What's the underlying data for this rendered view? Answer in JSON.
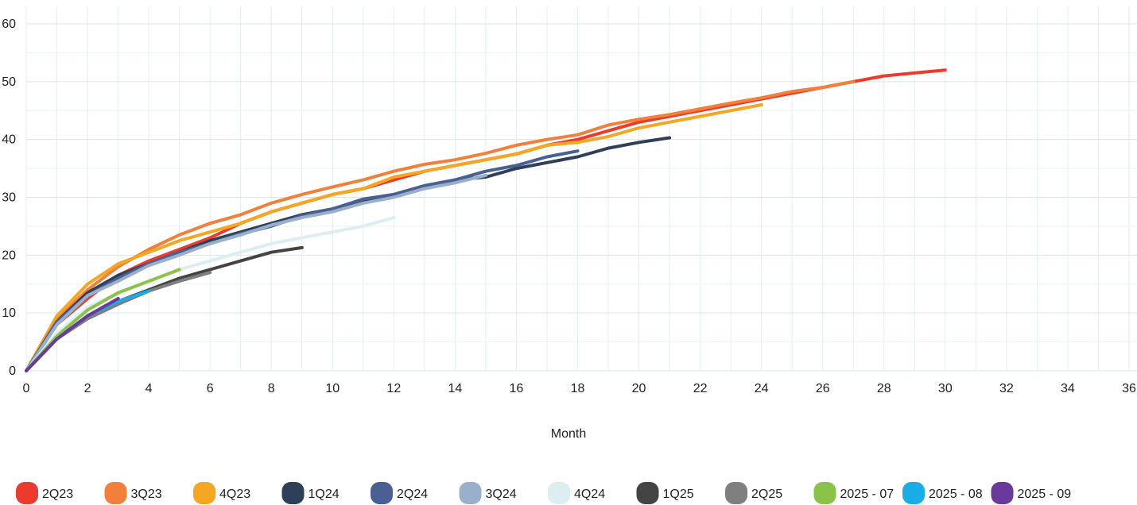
{
  "chart_data": {
    "type": "line",
    "title": "",
    "xlabel": "Month",
    "ylabel": "",
    "xlim": [
      0,
      36
    ],
    "ylim": [
      0,
      60
    ],
    "xticks": [
      0,
      2,
      4,
      6,
      8,
      10,
      12,
      14,
      16,
      18,
      20,
      22,
      24,
      26,
      28,
      30,
      32,
      34,
      36
    ],
    "yticks": [
      0,
      10,
      20,
      30,
      40,
      50,
      60
    ],
    "grid": true,
    "legend_position": "bottom",
    "series": [
      {
        "name": "2Q23",
        "color": "#EC3B2C",
        "x": [
          0,
          1,
          2,
          3,
          4,
          5,
          6,
          7,
          8,
          9,
          10,
          11,
          12,
          13,
          14,
          15,
          16,
          17,
          18,
          19,
          20,
          21,
          22,
          23,
          24,
          25,
          26,
          27,
          28,
          29,
          30
        ],
        "y": [
          0,
          8,
          12.5,
          16.5,
          19,
          21,
          23,
          25.5,
          27.5,
          29,
          30.5,
          31.5,
          33,
          34.5,
          35.5,
          36.5,
          37.5,
          39,
          40,
          41.5,
          43,
          44,
          45,
          46,
          47,
          48,
          49,
          50,
          51,
          51.5,
          52
        ]
      },
      {
        "name": "3Q23",
        "color": "#F0803C",
        "x": [
          0,
          1,
          2,
          3,
          4,
          5,
          6,
          7,
          8,
          9,
          10,
          11,
          12,
          13,
          14,
          15,
          16,
          17,
          18,
          19,
          20,
          21,
          22,
          23,
          24,
          25,
          26,
          27
        ],
        "y": [
          0,
          9,
          14,
          18,
          21,
          23.5,
          25.5,
          27,
          29,
          30.5,
          31.8,
          33,
          34.5,
          35.7,
          36.5,
          37.6,
          39,
          40,
          40.8,
          42.5,
          43.5,
          44.3,
          45.3,
          46.3,
          47.2,
          48.3,
          49,
          50
        ]
      },
      {
        "name": "4Q23",
        "color": "#F5A623",
        "x": [
          0,
          1,
          2,
          3,
          4,
          5,
          6,
          7,
          8,
          9,
          10,
          11,
          12,
          13,
          14,
          15,
          16,
          17,
          18,
          19,
          20,
          21,
          22,
          23,
          24
        ],
        "y": [
          0,
          9.5,
          15,
          18.5,
          20.5,
          22.5,
          24,
          25.5,
          27.5,
          29,
          30.5,
          31.5,
          33.5,
          34.5,
          35.5,
          36.5,
          37.5,
          39,
          39.5,
          40.5,
          42,
          43,
          44,
          45,
          46
        ]
      },
      {
        "name": "1Q24",
        "color": "#2E4057",
        "x": [
          0,
          1,
          2,
          3,
          4,
          5,
          6,
          7,
          8,
          9,
          10,
          11,
          12,
          13,
          14,
          15,
          16,
          17,
          18,
          19,
          20,
          21
        ],
        "y": [
          0,
          8.5,
          13.5,
          16.5,
          18.5,
          20.5,
          22.5,
          24,
          25.5,
          27,
          28,
          29.5,
          30.5,
          32,
          33,
          33.5,
          35,
          36,
          37,
          38.5,
          39.5,
          40.3
        ]
      },
      {
        "name": "2Q24",
        "color": "#4A6094",
        "x": [
          0,
          1,
          2,
          3,
          4,
          5,
          6,
          7,
          8,
          9,
          10,
          11,
          12,
          13,
          14,
          15,
          16,
          17,
          18
        ],
        "y": [
          0,
          8.5,
          13,
          16,
          18.5,
          20.5,
          22,
          23.7,
          25,
          26.8,
          28,
          29.7,
          30.5,
          32,
          33,
          34.5,
          35.5,
          37,
          38
        ]
      },
      {
        "name": "3Q24",
        "color": "#9AAFCA",
        "x": [
          0,
          1,
          2,
          3,
          4,
          5,
          6,
          7,
          8,
          9,
          10,
          11,
          12,
          13,
          14,
          15
        ],
        "y": [
          0,
          8,
          13,
          15.5,
          18.2,
          20,
          22,
          23.5,
          25.2,
          26.5,
          27.5,
          29,
          30,
          31.5,
          32.5,
          33.8
        ]
      },
      {
        "name": "4Q24",
        "color": "#DCEEF2",
        "x": [
          0,
          1,
          2,
          3,
          4,
          5,
          6,
          7,
          8,
          9,
          10,
          11,
          12
        ],
        "y": [
          0,
          6.5,
          11,
          13.5,
          15.5,
          17.5,
          19,
          20.5,
          22,
          23,
          24,
          25,
          26.5
        ]
      },
      {
        "name": "1Q25",
        "color": "#444444",
        "x": [
          0,
          1,
          2,
          3,
          4,
          5,
          6,
          7,
          8,
          9
        ],
        "y": [
          0,
          5.5,
          9.5,
          12,
          14,
          16,
          17.5,
          19,
          20.5,
          21.3
        ]
      },
      {
        "name": "2Q25",
        "color": "#7F7F7F",
        "x": [
          0,
          1,
          2,
          3,
          4,
          5,
          6
        ],
        "y": [
          0,
          5.5,
          9,
          11.5,
          13.8,
          15.5,
          17
        ]
      },
      {
        "name": "2025 - 07",
        "color": "#8BC34A",
        "x": [
          0,
          1,
          2,
          3,
          4,
          5
        ],
        "y": [
          0,
          6,
          10.5,
          13.5,
          15.5,
          17.5
        ]
      },
      {
        "name": "2025 - 08",
        "color": "#1AACE6",
        "x": [
          0,
          1,
          2,
          3,
          4
        ],
        "y": [
          0,
          5.5,
          9.5,
          12,
          13.8
        ]
      },
      {
        "name": "2025 - 09",
        "color": "#6A3A9A",
        "x": [
          0,
          1,
          2,
          3
        ],
        "y": [
          0,
          5.5,
          9.5,
          12.5
        ]
      }
    ]
  }
}
